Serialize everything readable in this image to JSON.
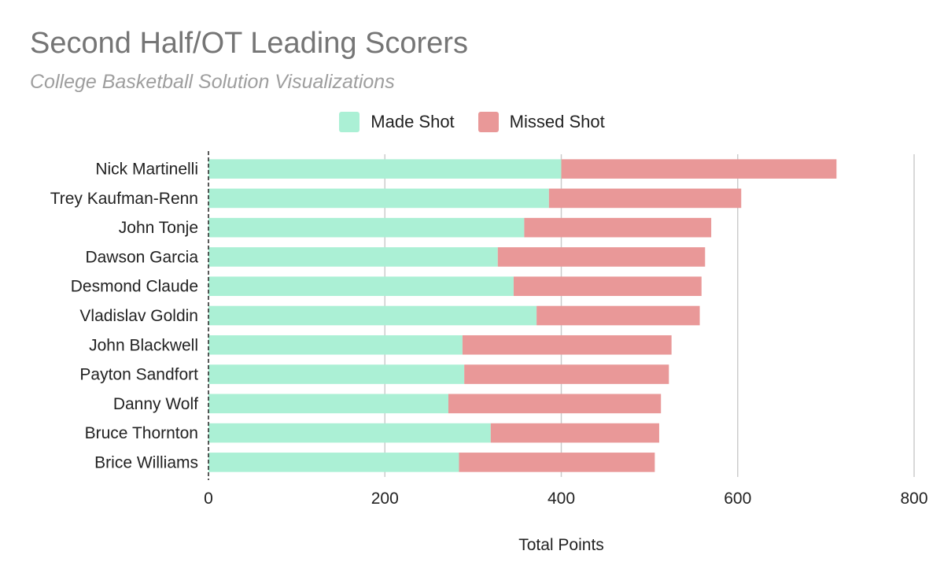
{
  "chart_data": {
    "type": "bar",
    "orientation": "horizontal",
    "stacked": true,
    "title": "Second Half/OT Leading Scorers",
    "subtitle": "College Basketball Solution Visualizations",
    "xlabel": "Total Points",
    "ylabel": "",
    "xlim": [
      0,
      800
    ],
    "xticks": [
      0,
      200,
      400,
      600,
      800
    ],
    "grid": true,
    "legend_position": "top",
    "categories": [
      "Nick Martinelli",
      "Trey Kaufman-Renn",
      "John Tonje",
      "Dawson Garcia",
      "Desmond Claude",
      "Vladislav Goldin",
      "John Blackwell",
      "Payton Sandfort",
      "Danny Wolf",
      "Bruce Thornton",
      "Brice Williams"
    ],
    "series": [
      {
        "name": "Made Shot",
        "color": "#abf0d5",
        "values": [
          400,
          386,
          358,
          328,
          346,
          372,
          288,
          290,
          272,
          320,
          284
        ]
      },
      {
        "name": "Missed Shot",
        "color": "#e99898",
        "values": [
          312,
          218,
          212,
          235,
          213,
          185,
          237,
          232,
          241,
          191,
          222
        ]
      }
    ]
  }
}
